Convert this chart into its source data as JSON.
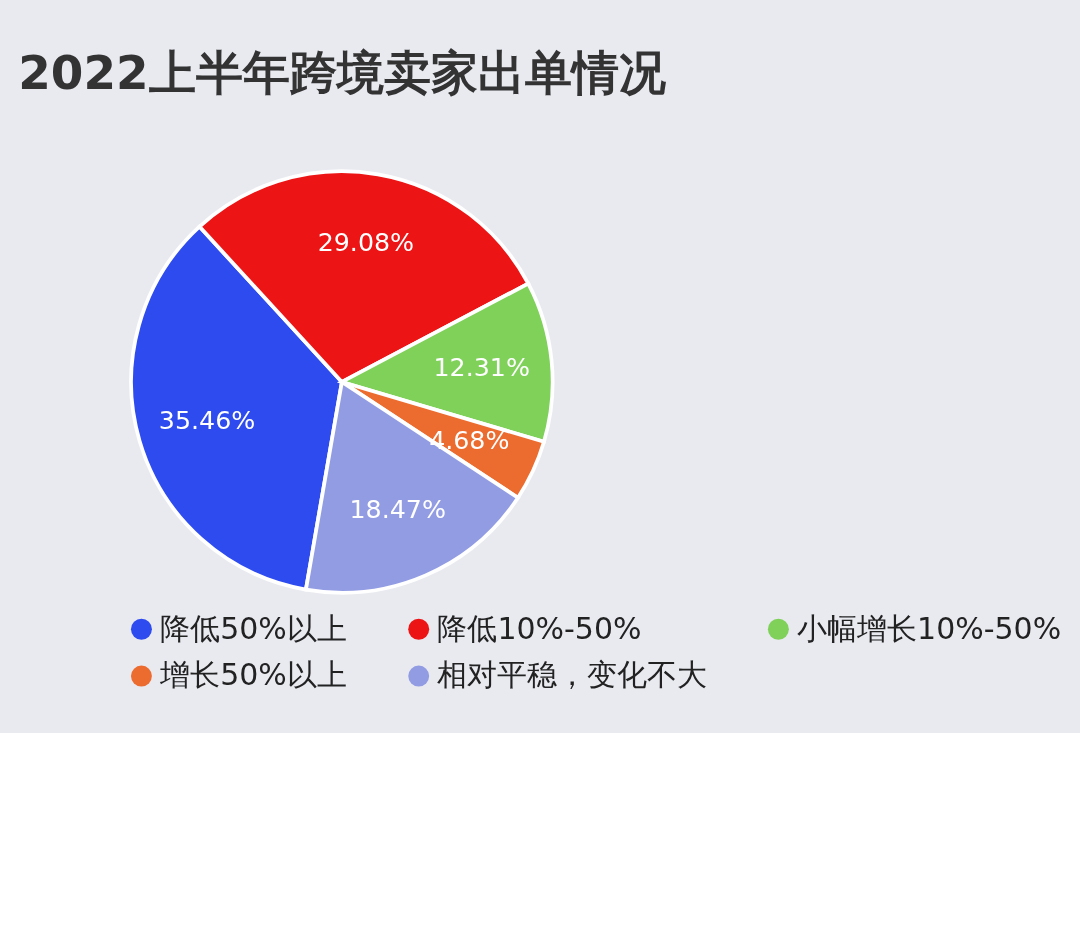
{
  "chart_data": {
    "type": "pie",
    "title": "2022上半年跨境卖家出单情况",
    "categories": [
      "降低50%以上",
      "降低10%-50%",
      "小幅增长10%-50%",
      "增长50%以上",
      "相对平稳，变化不大"
    ],
    "values": [
      35.46,
      29.08,
      12.31,
      4.68,
      18.47
    ],
    "value_labels": [
      "35.46%",
      "29.08%",
      "12.31%",
      "4.68%",
      "18.47%"
    ],
    "colors": [
      "#2d4bef",
      "#ec1414",
      "#7fd15a",
      "#ec6c30",
      "#929ce3"
    ],
    "legend": "bottom"
  }
}
